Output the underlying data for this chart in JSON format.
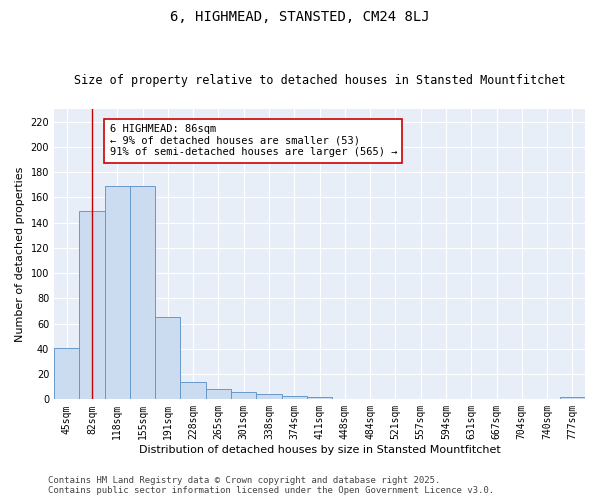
{
  "title": "6, HIGHMEAD, STANSTED, CM24 8LJ",
  "subtitle": "Size of property relative to detached houses in Stansted Mountfitchet",
  "xlabel": "Distribution of detached houses by size in Stansted Mountfitchet",
  "ylabel": "Number of detached properties",
  "categories": [
    "45sqm",
    "82sqm",
    "118sqm",
    "155sqm",
    "191sqm",
    "228sqm",
    "265sqm",
    "301sqm",
    "338sqm",
    "374sqm",
    "411sqm",
    "448sqm",
    "484sqm",
    "521sqm",
    "557sqm",
    "594sqm",
    "631sqm",
    "667sqm",
    "704sqm",
    "740sqm",
    "777sqm"
  ],
  "values": [
    41,
    149,
    169,
    169,
    65,
    14,
    8,
    6,
    4,
    3,
    2,
    0,
    0,
    0,
    0,
    0,
    0,
    0,
    0,
    0,
    2
  ],
  "bar_color": "#ccdcf0",
  "bar_edge_color": "#6699cc",
  "vline_color": "#cc0000",
  "vline_x_index": 1.5,
  "annotation_text": "6 HIGHMEAD: 86sqm\n← 9% of detached houses are smaller (53)\n91% of semi-detached houses are larger (565) →",
  "annotation_box_color": "#ffffff",
  "annotation_box_edge_color": "#cc0000",
  "ylim": [
    0,
    230
  ],
  "yticks": [
    0,
    20,
    40,
    60,
    80,
    100,
    120,
    140,
    160,
    180,
    200,
    220
  ],
  "plot_bg_color": "#e8eef8",
  "fig_bg_color": "#ffffff",
  "grid_color": "#ffffff",
  "footer_line1": "Contains HM Land Registry data © Crown copyright and database right 2025.",
  "footer_line2": "Contains public sector information licensed under the Open Government Licence v3.0.",
  "title_fontsize": 10,
  "subtitle_fontsize": 8.5,
  "axis_label_fontsize": 8,
  "tick_fontsize": 7,
  "annotation_fontsize": 7.5,
  "footer_fontsize": 6.5
}
